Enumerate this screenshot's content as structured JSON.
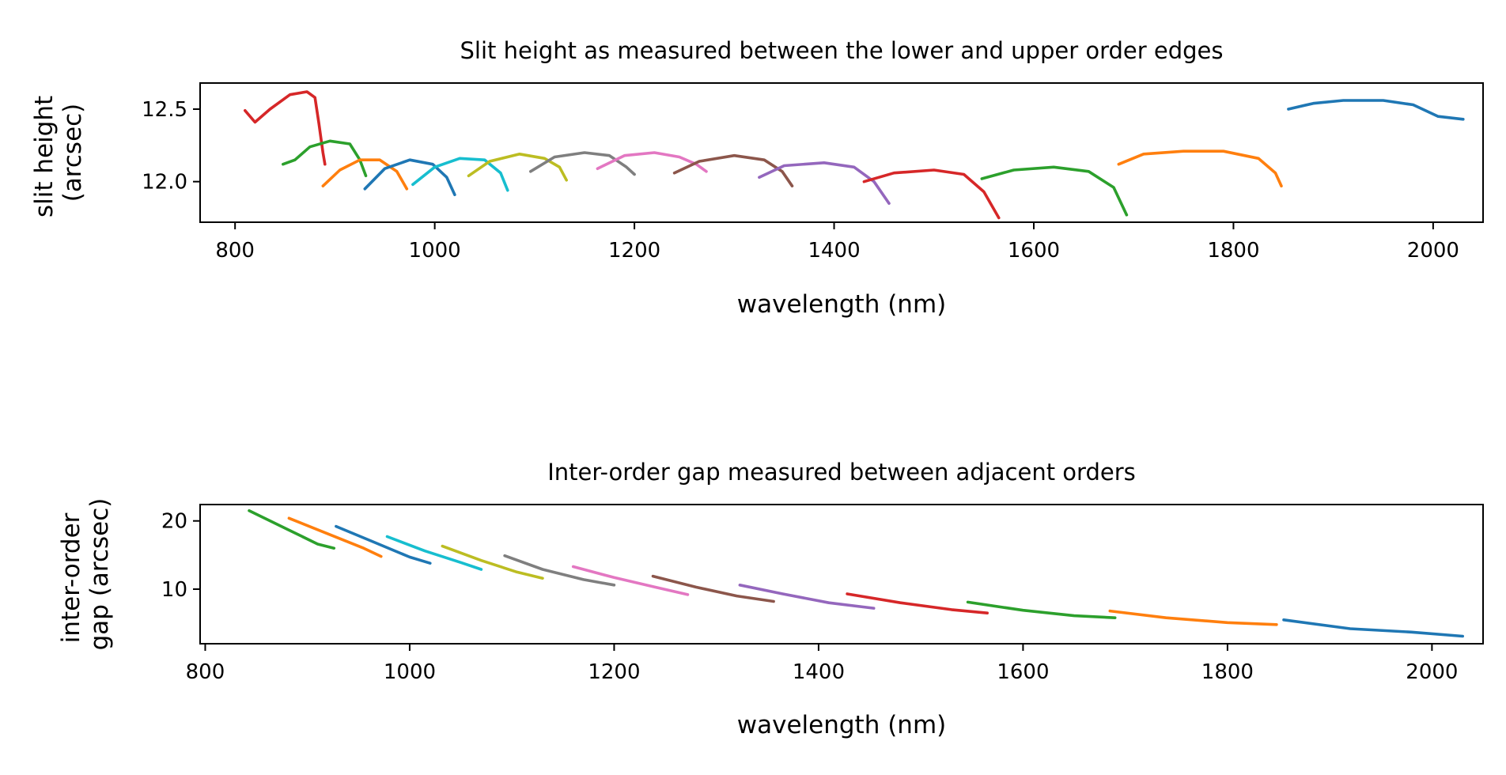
{
  "chart_data": [
    {
      "type": "line",
      "title": "Slit height as measured between the lower and upper order edges",
      "xlabel": "wavelength (nm)",
      "ylabel": [
        "slit height",
        "(arcsec)"
      ],
      "xlim": [
        765,
        2050
      ],
      "ylim": [
        11.72,
        12.68
      ],
      "xticks": [
        800,
        1000,
        1200,
        1400,
        1600,
        1800,
        2000
      ],
      "yticks": [
        12.0,
        12.5
      ],
      "ytick_labels": [
        "12.0",
        "12.5"
      ],
      "grid": false,
      "series": [
        {
          "color": "#d62728",
          "x": [
            810,
            820,
            835,
            855,
            872,
            880,
            884,
            888,
            890
          ],
          "y": [
            12.49,
            12.41,
            12.5,
            12.6,
            12.62,
            12.58,
            12.4,
            12.2,
            12.12
          ]
        },
        {
          "color": "#2ca02c",
          "x": [
            848,
            860,
            875,
            895,
            915,
            925,
            931
          ],
          "y": [
            12.12,
            12.15,
            12.24,
            12.28,
            12.26,
            12.15,
            12.04
          ]
        },
        {
          "color": "#ff7f0e",
          "x": [
            888,
            905,
            925,
            945,
            962,
            972
          ],
          "y": [
            11.97,
            12.08,
            12.15,
            12.15,
            12.07,
            11.95
          ]
        },
        {
          "color": "#1f77b4",
          "x": [
            930,
            950,
            975,
            998,
            1012,
            1020
          ],
          "y": [
            11.95,
            12.09,
            12.15,
            12.12,
            12.03,
            11.91
          ]
        },
        {
          "color": "#17becf",
          "x": [
            978,
            1000,
            1025,
            1050,
            1066,
            1073
          ],
          "y": [
            11.98,
            12.1,
            12.16,
            12.15,
            12.06,
            11.94
          ]
        },
        {
          "color": "#bcbd22",
          "x": [
            1034,
            1055,
            1085,
            1110,
            1125,
            1132
          ],
          "y": [
            12.04,
            12.14,
            12.19,
            12.16,
            12.1,
            12.01
          ]
        },
        {
          "color": "#7f7f7f",
          "x": [
            1096,
            1120,
            1150,
            1175,
            1192,
            1200
          ],
          "y": [
            12.07,
            12.17,
            12.2,
            12.18,
            12.1,
            12.05
          ]
        },
        {
          "color": "#e377c2",
          "x": [
            1163,
            1190,
            1220,
            1245,
            1262,
            1272
          ],
          "y": [
            12.09,
            12.18,
            12.2,
            12.17,
            12.12,
            12.07
          ]
        },
        {
          "color": "#8c564b",
          "x": [
            1240,
            1265,
            1300,
            1330,
            1348,
            1358
          ],
          "y": [
            12.06,
            12.14,
            12.18,
            12.15,
            12.07,
            11.97
          ]
        },
        {
          "color": "#9467bd",
          "x": [
            1325,
            1350,
            1390,
            1420,
            1440,
            1455
          ],
          "y": [
            12.03,
            12.11,
            12.13,
            12.1,
            12.0,
            11.85
          ]
        },
        {
          "color": "#d62728",
          "x": [
            1430,
            1460,
            1500,
            1530,
            1550,
            1565
          ],
          "y": [
            12.0,
            12.06,
            12.08,
            12.05,
            11.93,
            11.75
          ]
        },
        {
          "color": "#2ca02c",
          "x": [
            1548,
            1580,
            1620,
            1655,
            1680,
            1693
          ],
          "y": [
            12.02,
            12.08,
            12.1,
            12.07,
            11.96,
            11.77
          ]
        },
        {
          "color": "#ff7f0e",
          "x": [
            1685,
            1710,
            1750,
            1790,
            1825,
            1842,
            1848
          ],
          "y": [
            12.12,
            12.19,
            12.21,
            12.21,
            12.16,
            12.06,
            11.97
          ]
        },
        {
          "color": "#1f77b4",
          "x": [
            1855,
            1880,
            1910,
            1950,
            1980,
            2005,
            2030
          ],
          "y": [
            12.5,
            12.54,
            12.56,
            12.56,
            12.53,
            12.45,
            12.43
          ]
        }
      ]
    },
    {
      "type": "line",
      "title": "Inter-order gap measured between adjacent orders",
      "xlabel": "wavelength (nm)",
      "ylabel": [
        "inter-order",
        "gap (arcsec)"
      ],
      "xlim": [
        795,
        2050
      ],
      "ylim": [
        2.0,
        22.4
      ],
      "xticks": [
        800,
        1000,
        1200,
        1400,
        1600,
        1800,
        2000
      ],
      "yticks": [
        10,
        20
      ],
      "ytick_labels": [
        "10",
        "20"
      ],
      "grid": false,
      "series": [
        {
          "color": "#2ca02c",
          "x": [
            843,
            880,
            910,
            926
          ],
          "y": [
            21.5,
            18.8,
            16.6,
            16.0
          ]
        },
        {
          "color": "#ff7f0e",
          "x": [
            882,
            920,
            955,
            972
          ],
          "y": [
            20.4,
            18.1,
            16.0,
            14.8
          ]
        },
        {
          "color": "#1f77b4",
          "x": [
            928,
            965,
            1000,
            1020
          ],
          "y": [
            19.2,
            16.9,
            14.7,
            13.8
          ]
        },
        {
          "color": "#17becf",
          "x": [
            978,
            1015,
            1050,
            1070
          ],
          "y": [
            17.7,
            15.6,
            13.9,
            12.9
          ]
        },
        {
          "color": "#bcbd22",
          "x": [
            1032,
            1070,
            1105,
            1130
          ],
          "y": [
            16.3,
            14.2,
            12.5,
            11.6
          ]
        },
        {
          "color": "#7f7f7f",
          "x": [
            1093,
            1130,
            1170,
            1200
          ],
          "y": [
            14.9,
            12.9,
            11.4,
            10.6
          ]
        },
        {
          "color": "#e377c2",
          "x": [
            1160,
            1200,
            1240,
            1272
          ],
          "y": [
            13.3,
            11.7,
            10.3,
            9.2
          ]
        },
        {
          "color": "#8c564b",
          "x": [
            1238,
            1280,
            1320,
            1356
          ],
          "y": [
            11.9,
            10.3,
            9.0,
            8.2
          ]
        },
        {
          "color": "#9467bd",
          "x": [
            1323,
            1365,
            1410,
            1454
          ],
          "y": [
            10.6,
            9.3,
            8.0,
            7.2
          ]
        },
        {
          "color": "#d62728",
          "x": [
            1428,
            1480,
            1530,
            1565
          ],
          "y": [
            9.3,
            8.0,
            7.0,
            6.5
          ]
        },
        {
          "color": "#2ca02c",
          "x": [
            1546,
            1600,
            1650,
            1690
          ],
          "y": [
            8.1,
            6.9,
            6.1,
            5.8
          ]
        },
        {
          "color": "#ff7f0e",
          "x": [
            1685,
            1740,
            1800,
            1848
          ],
          "y": [
            6.8,
            5.8,
            5.1,
            4.8
          ]
        },
        {
          "color": "#1f77b4",
          "x": [
            1855,
            1920,
            1980,
            2030
          ],
          "y": [
            5.5,
            4.2,
            3.7,
            3.1
          ]
        }
      ]
    }
  ]
}
